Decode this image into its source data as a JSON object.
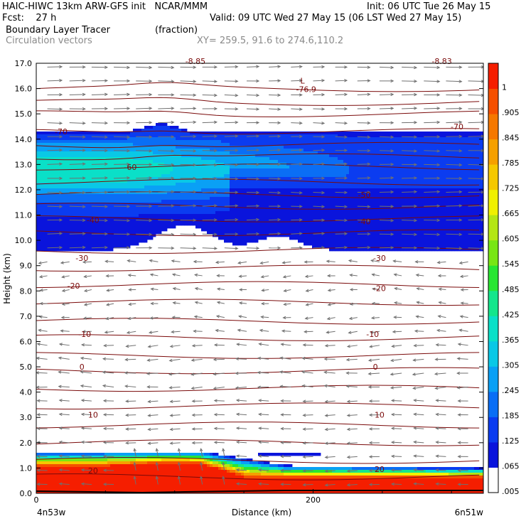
{
  "header": {
    "line1_left": "HAIC-HIWC 13km ARW-GFS init   NCAR/MMM",
    "line1_right": "Init: 06 UTC Tue 26 May 15",
    "line2_left": "Fcst:    27 h",
    "line2_right": "Valid: 09 UTC Wed 27 May 15 (06 LST Wed 27 May 15)",
    "line3_left": "Boundary Layer Tracer",
    "line3_units": "(fraction)",
    "line4_left": "Circulation vectors",
    "line4_xy": "XY= 259.5, 91.6 to 274.6,110.2"
  },
  "chart_data": {
    "type": "heatmap",
    "xlabel": "Distance (km)",
    "ylabel": "Height (km)",
    "xlim": [
      0,
      323
    ],
    "ylim": [
      0,
      17
    ],
    "x_ticks": [
      {
        "value": 0,
        "label": "0"
      },
      {
        "value": 200,
        "label": "200"
      }
    ],
    "x_end_labels": {
      "left": "4n53w",
      "right": "6n51w"
    },
    "y_ticks": [
      "0.0",
      "1.0",
      "2.0",
      "3.0",
      "4.0",
      "5.0",
      "6.0",
      "7.0",
      "8.0",
      "9.0",
      "10.0",
      "11.0",
      "12.0",
      "13.0",
      "14.0",
      "15.0",
      "16.0",
      "17.0"
    ],
    "colorbar": {
      "labels": [
        ".005",
        ".065",
        ".125",
        ".185",
        ".245",
        ".305",
        ".365",
        ".425",
        ".485",
        ".545",
        ".605",
        ".665",
        ".725",
        ".785",
        ".845",
        ".905",
        "1"
      ],
      "colors": [
        "#ffffff",
        "#0a14dc",
        "#0b3cf0",
        "#0a6ef5",
        "#0aa0f5",
        "#0ac8e6",
        "#0ae0c8",
        "#14e68c",
        "#28e632",
        "#78e614",
        "#b4e614",
        "#f0f000",
        "#f5c800",
        "#f5a000",
        "#f57800",
        "#f55000",
        "#f51e00"
      ]
    },
    "temperature_labels": [
      {
        "text": "-70",
        "x": 18,
        "y": 14.3
      },
      {
        "text": "-70",
        "x": 304,
        "y": 14.5
      },
      {
        "text": "-60",
        "x": 68,
        "y": 12.9
      },
      {
        "text": "-50",
        "x": 237,
        "y": 11.8
      },
      {
        "text": "-40",
        "x": 41,
        "y": 10.8
      },
      {
        "text": "-40",
        "x": 237,
        "y": 10.75
      },
      {
        "text": "-30",
        "x": 33,
        "y": 9.3
      },
      {
        "text": "-30",
        "x": 248,
        "y": 9.3
      },
      {
        "text": "-20",
        "x": 27,
        "y": 8.2
      },
      {
        "text": "-20",
        "x": 248,
        "y": 8.1
      },
      {
        "text": "-10",
        "x": 35,
        "y": 6.3
      },
      {
        "text": "-10",
        "x": 243,
        "y": 6.3
      },
      {
        "text": "0",
        "x": 33,
        "y": 5.0
      },
      {
        "text": "0",
        "x": 245,
        "y": 5.0
      },
      {
        "text": "10",
        "x": 41,
        "y": 3.1
      },
      {
        "text": "10",
        "x": 248,
        "y": 3.1
      },
      {
        "text": "20",
        "x": 41,
        "y": 0.9
      },
      {
        "text": "20",
        "x": 248,
        "y": 0.95
      }
    ],
    "low_marker": {
      "symbol": "L",
      "value": "-76.9",
      "x": 200,
      "y": 16.2
    },
    "top_partial_labels": [
      {
        "text": "-8.85",
        "x": 115
      },
      {
        "text": "-8.83",
        "x": 293
      }
    ],
    "isotherm_heights": [
      16.0,
      15.45,
      15.0,
      14.3,
      13.75,
      13.3,
      12.9,
      12.3,
      11.8,
      11.35,
      10.85,
      10.3,
      9.6,
      8.9,
      8.25,
      7.55,
      6.8,
      6.15,
      5.45,
      4.85,
      4.15,
      3.45,
      2.7,
      2.0,
      1.3,
      0.65
    ],
    "tracer_layers": [
      {
        "name": "upper",
        "value_range": [
          0.005,
          0.4
        ]
      },
      {
        "name": "boundary",
        "value_range": [
          0.005,
          1
        ]
      }
    ]
  }
}
